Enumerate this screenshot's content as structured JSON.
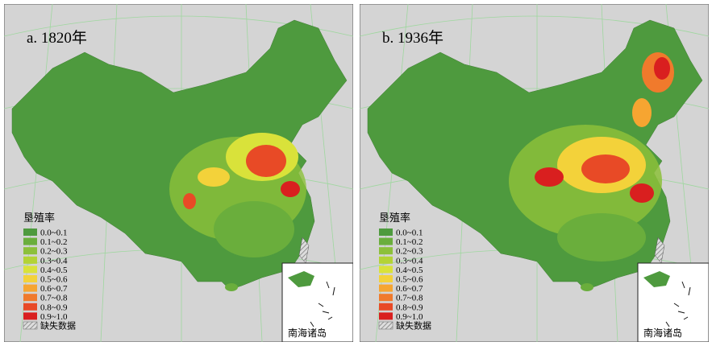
{
  "panels": [
    {
      "title": "a. 1820年",
      "legend_title": "垦殖率",
      "legend": [
        {
          "label": "0.0~0.1",
          "color": "#4e9a3e"
        },
        {
          "label": "0.1~0.2",
          "color": "#6aae3c"
        },
        {
          "label": "0.2~0.3",
          "color": "#8cc03a"
        },
        {
          "label": "0.3~0.4",
          "color": "#b3d335"
        },
        {
          "label": "0.4~0.5",
          "color": "#d9e23a"
        },
        {
          "label": "0.5~0.6",
          "color": "#f3d23a"
        },
        {
          "label": "0.6~0.7",
          "color": "#f6a531"
        },
        {
          "label": "0.7~0.8",
          "color": "#f07a2c"
        },
        {
          "label": "0.8~0.9",
          "color": "#e84a26"
        },
        {
          "label": "0.9~1.0",
          "color": "#d91f1f"
        }
      ],
      "missing_label": "缺失数据",
      "inset_label": "南海诸岛"
    },
    {
      "title": "b. 1936年",
      "legend_title": "垦殖率",
      "legend": [
        {
          "label": "0.0~0.1",
          "color": "#4e9a3e"
        },
        {
          "label": "0.1~0.2",
          "color": "#6aae3c"
        },
        {
          "label": "0.2~0.3",
          "color": "#8cc03a"
        },
        {
          "label": "0.3~0.4",
          "color": "#b3d335"
        },
        {
          "label": "0.4~0.5",
          "color": "#d9e23a"
        },
        {
          "label": "0.5~0.6",
          "color": "#f3d23a"
        },
        {
          "label": "0.6~0.7",
          "color": "#f6a531"
        },
        {
          "label": "0.7~0.8",
          "color": "#f07a2c"
        },
        {
          "label": "0.8~0.9",
          "color": "#e84a26"
        },
        {
          "label": "0.9~1.0",
          "color": "#d91f1f"
        }
      ],
      "missing_label": "缺失数据",
      "inset_label": "南海诸岛"
    }
  ]
}
